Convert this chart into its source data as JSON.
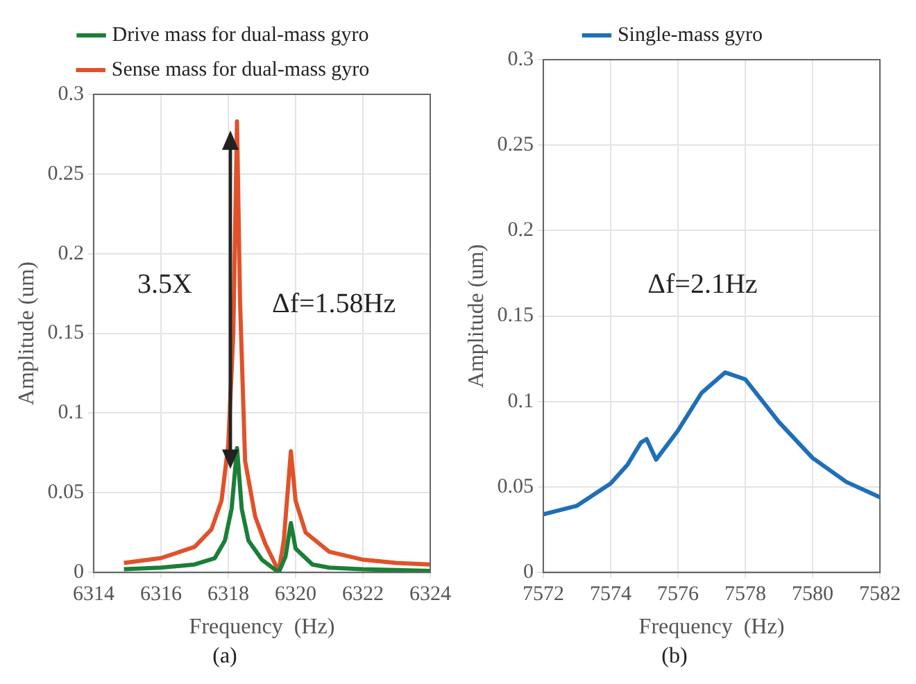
{
  "chart_data": [
    {
      "type": "line",
      "title": "(a)",
      "xlabel": "Frequency  (Hz)",
      "ylabel": "Amplitude (um)",
      "xlim": [
        6314,
        6324
      ],
      "xticks": [
        6314,
        6316,
        6318,
        6320,
        6322,
        6324
      ],
      "ylim": [
        0,
        0.3
      ],
      "yticks": [
        0,
        0.05,
        0.1,
        0.15,
        0.2,
        0.25,
        0.3
      ],
      "grid": true,
      "legend": "top",
      "marker": "none",
      "line_style": "solid",
      "annotations": [
        "3.5X",
        "Δf=1.58Hz"
      ],
      "series": [
        {
          "name": "Drive mass for dual-mass gyro",
          "color": "#1a7f37",
          "x": [
            6314.9,
            6316,
            6317,
            6317.6,
            6317.9,
            6318.1,
            6318.26,
            6318.4,
            6318.6,
            6319,
            6319.5,
            6319.7,
            6319.86,
            6320,
            6320.5,
            6321,
            6322,
            6324
          ],
          "values": [
            0.002,
            0.003,
            0.005,
            0.009,
            0.02,
            0.04,
            0.078,
            0.04,
            0.02,
            0.008,
            0.0,
            0.01,
            0.031,
            0.015,
            0.005,
            0.003,
            0.002,
            0.001
          ]
        },
        {
          "name": "Sense mass for dual-mass gyro",
          "color": "#e0522a",
          "x": [
            6314.9,
            6316,
            6317,
            6317.5,
            6317.8,
            6318,
            6318.15,
            6318.26,
            6318.35,
            6318.5,
            6318.8,
            6319.1,
            6319.4,
            6319.5,
            6319.65,
            6319.86,
            6320,
            6320.3,
            6321,
            6322,
            6323,
            6324
          ],
          "values": [
            0.006,
            0.009,
            0.016,
            0.027,
            0.045,
            0.08,
            0.15,
            0.283,
            0.17,
            0.07,
            0.035,
            0.018,
            0.005,
            0.001,
            0.02,
            0.076,
            0.045,
            0.025,
            0.013,
            0.008,
            0.006,
            0.005
          ]
        }
      ]
    },
    {
      "type": "line",
      "title": "(b)",
      "xlabel": "Frequency  (Hz)",
      "ylabel": "Amplitude (um)",
      "xlim": [
        7572,
        7582
      ],
      "xticks": [
        7572,
        7574,
        7576,
        7578,
        7580,
        7582
      ],
      "ylim": [
        0,
        0.3
      ],
      "yticks": [
        0,
        0.05,
        0.1,
        0.15,
        0.2,
        0.25,
        0.3
      ],
      "grid": true,
      "legend": "top",
      "marker": "none",
      "line_style": "solid",
      "annotations": [
        "Δf=2.1Hz"
      ],
      "series": [
        {
          "name": "Single-mass gyro",
          "color": "#1f6fb8",
          "x": [
            7572,
            7573,
            7574,
            7574.5,
            7574.9,
            7575.07,
            7575.35,
            7576,
            7576.7,
            7577.4,
            7578,
            7579,
            7580,
            7581,
            7582
          ],
          "values": [
            0.034,
            0.039,
            0.052,
            0.063,
            0.076,
            0.078,
            0.066,
            0.083,
            0.105,
            0.117,
            0.113,
            0.088,
            0.067,
            0.053,
            0.044
          ]
        }
      ]
    }
  ]
}
